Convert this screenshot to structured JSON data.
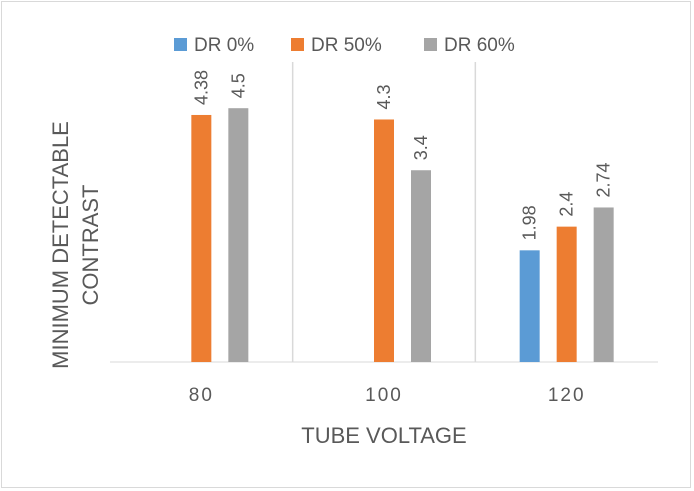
{
  "chart_data": {
    "type": "bar",
    "categories": [
      "80",
      "100",
      "120"
    ],
    "series": [
      {
        "name": "DR 0%",
        "values": [
          null,
          null,
          1.98
        ],
        "labels": [
          "",
          "",
          "1.98"
        ],
        "color": "#5b9bd5"
      },
      {
        "name": "DR 50%",
        "values": [
          4.38,
          4.3,
          2.4
        ],
        "labels": [
          "4.38",
          "4.3",
          "2.4"
        ],
        "color": "#ed7d31"
      },
      {
        "name": "DR 60%",
        "values": [
          4.5,
          3.4,
          2.74
        ],
        "labels": [
          "4.5",
          "3.4",
          "2.74"
        ],
        "color": "#a5a5a5"
      }
    ],
    "xlabel": "TUBE VOLTAGE",
    "ylabel_lines": [
      "MINIMUM DETECTABLE",
      "CONTRAST"
    ],
    "ylim": [
      0,
      5
    ],
    "legend_position": "top",
    "grid": false,
    "category_separators": true
  }
}
